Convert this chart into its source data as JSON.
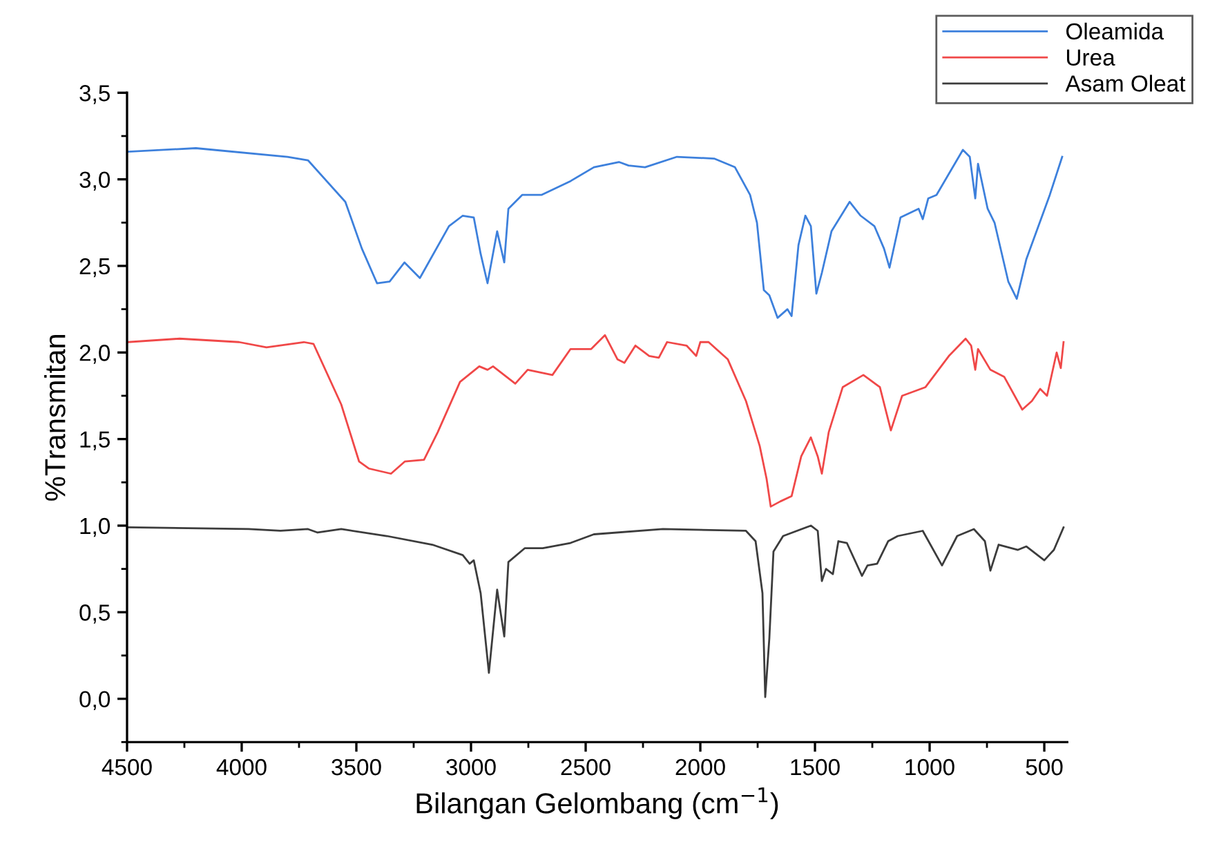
{
  "chart_data": {
    "type": "line",
    "xlabel": "Bilangan Gelombang (cm$^{−1}$)",
    "ylabel": "%Transmitan",
    "xlim": [
      4500,
      400
    ],
    "ylim": [
      -0.25,
      3.5
    ],
    "xticks": [
      4500,
      4000,
      3500,
      3000,
      2500,
      2000,
      1500,
      1000,
      500
    ],
    "yticks": [
      {
        "value": 0,
        "label": "0,0"
      },
      {
        "value": 0.5,
        "label": "0,5"
      },
      {
        "value": 1,
        "label": "1,0"
      },
      {
        "value": 1.5,
        "label": "1,5"
      },
      {
        "value": 2,
        "label": "2,0"
      },
      {
        "value": 2.5,
        "label": "2,5"
      },
      {
        "value": 3,
        "label": "3,0"
      },
      {
        "value": 3.5,
        "label": "3,5"
      }
    ],
    "grid": false,
    "legend": "top right",
    "marker": "none",
    "line_style": "solid",
    "series": [
      {
        "name": "Oleamida",
        "color": "#3d80dc",
        "x": [
          4494,
          4200,
          3800,
          3711,
          3548,
          3476,
          3410,
          3355,
          3290,
          3223,
          3096,
          3036,
          2988,
          2958,
          2928,
          2886,
          2855,
          2837,
          2777,
          2693,
          2566,
          2464,
          2355,
          2313,
          2241,
          2102,
          1940,
          1849,
          1783,
          1753,
          1723,
          1699,
          1663,
          1620,
          1602,
          1572,
          1542,
          1518,
          1494,
          1470,
          1428,
          1349,
          1301,
          1241,
          1199,
          1175,
          1127,
          1048,
          1030,
          1006,
          970,
          855,
          825,
          801,
          789,
          747,
          717,
          657,
          620,
          578,
          476,
          422
        ],
        "values": [
          3.16,
          3.18,
          3.13,
          3.11,
          2.87,
          2.6,
          2.4,
          2.41,
          2.52,
          2.43,
          2.73,
          2.79,
          2.78,
          2.57,
          2.4,
          2.7,
          2.52,
          2.83,
          2.91,
          2.91,
          2.99,
          3.07,
          3.1,
          3.08,
          3.07,
          3.13,
          3.12,
          3.07,
          2.91,
          2.75,
          2.36,
          2.33,
          2.2,
          2.25,
          2.21,
          2.62,
          2.79,
          2.73,
          2.34,
          2.46,
          2.7,
          2.87,
          2.79,
          2.73,
          2.6,
          2.49,
          2.78,
          2.83,
          2.77,
          2.89,
          2.91,
          3.17,
          3.13,
          2.89,
          3.09,
          2.83,
          2.75,
          2.41,
          2.31,
          2.54,
          2.91,
          3.13
        ]
      },
      {
        "name": "Urea",
        "color": "#f04848",
        "x": [
          4494,
          4271,
          4012,
          3892,
          3729,
          3687,
          3566,
          3488,
          3446,
          3349,
          3289,
          3205,
          3145,
          3048,
          2964,
          2928,
          2904,
          2807,
          2753,
          2645,
          2566,
          2476,
          2416,
          2361,
          2331,
          2283,
          2223,
          2181,
          2145,
          2060,
          2018,
          2000,
          1964,
          1880,
          1801,
          1741,
          1711,
          1693,
          1651,
          1602,
          1560,
          1518,
          1488,
          1470,
          1440,
          1379,
          1289,
          1217,
          1169,
          1120,
          1018,
          916,
          843,
          819,
          801,
          789,
          735,
          675,
          596,
          554,
          518,
          488,
          446,
          428,
          416
        ],
        "values": [
          2.06,
          2.08,
          2.06,
          2.03,
          2.06,
          2.05,
          1.7,
          1.37,
          1.33,
          1.3,
          1.37,
          1.38,
          1.54,
          1.83,
          1.92,
          1.9,
          1.92,
          1.82,
          1.9,
          1.87,
          2.02,
          2.02,
          2.1,
          1.96,
          1.94,
          2.04,
          1.98,
          1.97,
          2.06,
          2.04,
          1.98,
          2.06,
          2.06,
          1.96,
          1.72,
          1.46,
          1.27,
          1.11,
          1.14,
          1.17,
          1.4,
          1.51,
          1.4,
          1.3,
          1.54,
          1.8,
          1.87,
          1.8,
          1.55,
          1.75,
          1.8,
          1.98,
          2.08,
          2.04,
          1.9,
          2.02,
          1.9,
          1.86,
          1.67,
          1.72,
          1.79,
          1.75,
          2.0,
          1.91,
          2.06
        ]
      },
      {
        "name": "Asam Oleat",
        "color": "#3c3c3c",
        "x": [
          4494,
          3970,
          3831,
          3711,
          3669,
          3566,
          3367,
          3169,
          3036,
          3006,
          2988,
          2958,
          2922,
          2886,
          2855,
          2837,
          2765,
          2687,
          2566,
          2464,
          2163,
          1801,
          1759,
          1729,
          1717,
          1699,
          1681,
          1639,
          1518,
          1488,
          1470,
          1452,
          1422,
          1398,
          1361,
          1295,
          1271,
          1229,
          1181,
          1139,
          1030,
          946,
          880,
          807,
          759,
          735,
          699,
          615,
          578,
          500,
          458,
          416
        ],
        "values": [
          0.99,
          0.98,
          0.97,
          0.98,
          0.96,
          0.98,
          0.94,
          0.89,
          0.83,
          0.78,
          0.8,
          0.61,
          0.15,
          0.63,
          0.36,
          0.79,
          0.87,
          0.87,
          0.9,
          0.95,
          0.98,
          0.97,
          0.91,
          0.61,
          0.01,
          0.35,
          0.85,
          0.94,
          1.0,
          0.97,
          0.68,
          0.75,
          0.72,
          0.91,
          0.9,
          0.71,
          0.77,
          0.78,
          0.91,
          0.94,
          0.97,
          0.77,
          0.94,
          0.98,
          0.91,
          0.74,
          0.89,
          0.86,
          0.88,
          0.8,
          0.86,
          0.99
        ]
      }
    ]
  }
}
